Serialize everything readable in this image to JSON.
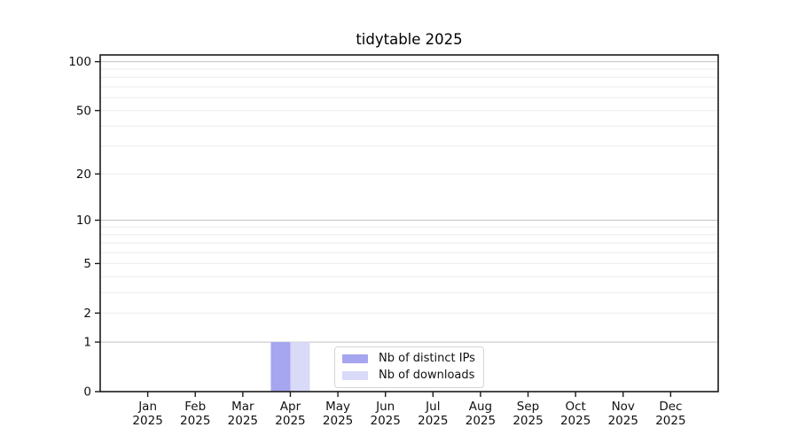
{
  "chart_data": {
    "type": "bar",
    "title": "tidytable 2025",
    "categories": [
      "Jan 2025",
      "Feb 2025",
      "Mar 2025",
      "Apr 2025",
      "May 2025",
      "Jun 2025",
      "Jul 2025",
      "Aug 2025",
      "Sep 2025",
      "Oct 2025",
      "Nov 2025",
      "Dec 2025"
    ],
    "series": [
      {
        "name": "Nb of distinct IPs",
        "color": "#a5a5f0",
        "values": [
          0,
          0,
          0,
          1,
          0,
          0,
          0,
          0,
          0,
          0,
          0,
          0
        ]
      },
      {
        "name": "Nb of downloads",
        "color": "#d9d9f8",
        "values": [
          0,
          0,
          0,
          1,
          0,
          0,
          0,
          0,
          0,
          0,
          0,
          0
        ]
      }
    ],
    "y_axis": {
      "scale": "log1p",
      "max": 110,
      "tick_values": [
        0,
        1,
        2,
        5,
        10,
        20,
        50,
        100
      ],
      "tick_labels": [
        "0",
        "1",
        "2",
        "5",
        "10",
        "20",
        "50",
        "100"
      ],
      "major_gridlines": [
        1,
        10,
        100
      ],
      "minor_gridlines": [
        2,
        3,
        4,
        5,
        6,
        7,
        8,
        9,
        20,
        30,
        40,
        50,
        60,
        70,
        80,
        90
      ]
    },
    "legend": {
      "position": "lower-center-inside",
      "items": [
        "Nb of distinct IPs",
        "Nb of downloads"
      ]
    },
    "grid": "horizontal-only",
    "colors": {
      "spine": "#1a1a1a",
      "grid_major": "#c2c2c2",
      "grid_minor": "#ebebeb",
      "text": "#111111",
      "legend_border": "#d5d5d5",
      "background": "#ffffff"
    }
  }
}
